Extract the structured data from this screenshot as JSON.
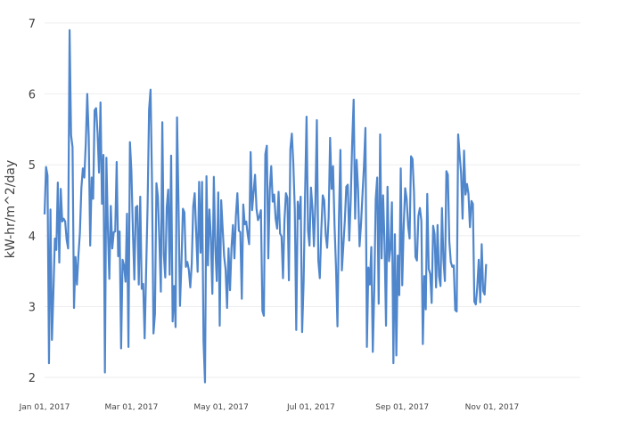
{
  "chart_data": {
    "type": "line",
    "title": "",
    "xlabel": "",
    "ylabel": "kW-hr/m^2/day",
    "ylim": [
      1.8,
      7.2
    ],
    "yticks": [
      2,
      3,
      4,
      5,
      6,
      7
    ],
    "grid": true,
    "legend": "none",
    "xlim": [
      "2017-01-01",
      "2017-12-31"
    ],
    "xticks": [
      {
        "date": "2017-01-01",
        "label": "Jan 01, 2017"
      },
      {
        "date": "2017-03-01",
        "label": "Mar 01, 2017"
      },
      {
        "date": "2017-05-01",
        "label": "May 01, 2017"
      },
      {
        "date": "2017-07-01",
        "label": "Jul 01, 2017"
      },
      {
        "date": "2017-09-01",
        "label": "Sep 01, 2017"
      },
      {
        "date": "2017-11-01",
        "label": "Nov 01, 2017"
      }
    ],
    "series": [
      {
        "color": "#4f86cc",
        "start": "2017-01-01",
        "step_days": 1,
        "values": [
          4.3,
          4.97,
          4.85,
          2.2,
          4.37,
          2.53,
          3.2,
          3.96,
          3.8,
          4.75,
          3.62,
          4.66,
          4.2,
          4.24,
          4.2,
          3.94,
          3.82,
          6.9,
          5.42,
          5.25,
          2.98,
          3.7,
          3.31,
          3.72,
          4.04,
          4.67,
          4.95,
          4.82,
          5.3,
          6.0,
          5.4,
          3.86,
          4.82,
          4.52,
          5.77,
          5.8,
          5.45,
          4.89,
          5.88,
          4.45,
          5.14,
          2.07,
          5.1,
          4.11,
          3.39,
          4.42,
          3.82,
          4.05,
          4.06,
          5.04,
          3.71,
          4.06,
          2.41,
          3.66,
          3.58,
          3.35,
          4.31,
          2.43,
          5.32,
          4.91,
          4.07,
          3.38,
          4.4,
          4.42,
          3.31,
          4.55,
          3.25,
          3.32,
          2.55,
          3.5,
          4.43,
          5.78,
          6.06,
          4.75,
          2.62,
          2.9,
          4.74,
          4.55,
          3.93,
          3.21,
          5.6,
          3.74,
          3.41,
          4.4,
          4.65,
          3.45,
          5.13,
          2.79,
          3.29,
          2.71,
          5.67,
          4.43,
          3.01,
          3.61,
          4.38,
          4.33,
          3.56,
          3.63,
          3.52,
          3.27,
          3.6,
          4.41,
          4.6,
          4.05,
          3.49,
          4.76,
          3.76,
          4.76,
          2.51,
          1.93,
          4.84,
          3.58,
          4.37,
          3.97,
          3.18,
          4.83,
          3.84,
          3.36,
          4.61,
          2.73,
          4.5,
          4.1,
          3.71,
          3.52,
          2.98,
          3.82,
          3.23,
          3.83,
          4.15,
          3.68,
          4.28,
          4.6,
          4.07,
          4.05,
          3.11,
          4.44,
          4.16,
          4.2,
          4.02,
          3.88,
          5.18,
          4.36,
          4.61,
          4.86,
          4.38,
          4.22,
          4.27,
          4.36,
          2.94,
          2.87,
          5.15,
          5.27,
          3.68,
          4.64,
          4.98,
          4.48,
          4.58,
          4.24,
          4.1,
          4.62,
          4.03,
          3.99,
          3.4,
          4.22,
          4.6,
          4.53,
          3.37,
          5.22,
          5.44,
          5.02,
          4.38,
          2.67,
          4.48,
          4.24,
          4.55,
          2.64,
          3.34,
          4.59,
          5.68,
          4.07,
          3.86,
          4.68,
          4.39,
          3.85,
          4.46,
          5.63,
          3.65,
          3.4,
          4.07,
          4.57,
          4.5,
          4.02,
          3.83,
          4.25,
          5.38,
          4.66,
          4.98,
          4.15,
          3.56,
          2.72,
          4.24,
          5.21,
          3.51,
          3.86,
          4.21,
          4.69,
          4.72,
          3.93,
          4.49,
          5.31,
          5.92,
          4.24,
          5.07,
          4.66,
          3.85,
          4.16,
          4.58,
          4.98,
          5.52,
          2.43,
          3.55,
          3.31,
          3.84,
          2.36,
          3.24,
          4.52,
          4.82,
          3.04,
          5.43,
          3.68,
          4.57,
          3.9,
          2.73,
          4.69,
          3.64,
          3.82,
          4.47,
          2.2,
          4.02,
          2.31,
          3.72,
          3.16,
          4.95,
          3.3,
          4.13,
          4.67,
          4.52,
          4.14,
          3.96,
          5.12,
          5.08,
          4.61,
          3.7,
          3.65,
          4.28,
          4.39,
          4.21,
          2.47,
          3.43,
          2.96,
          4.59,
          3.53,
          3.46,
          3.05,
          4.14,
          4.02,
          3.27,
          4.15,
          3.43,
          3.29,
          4.39,
          3.66,
          3.36,
          4.91,
          4.86,
          3.92,
          3.63,
          3.56,
          3.58,
          2.95,
          2.93,
          5.43,
          5.14,
          4.88,
          4.24,
          5.2,
          4.58,
          4.73,
          4.59,
          4.12,
          4.49,
          4.45,
          3.07,
          3.03,
          3.28,
          3.66,
          3.06,
          3.88,
          3.22,
          3.17,
          3.6
        ]
      }
    ]
  }
}
